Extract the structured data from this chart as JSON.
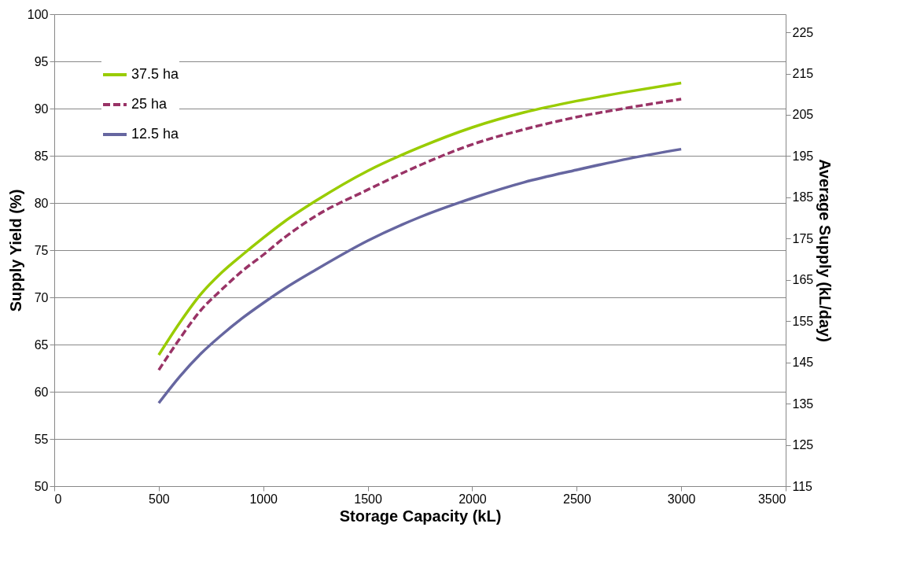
{
  "chart_data": {
    "type": "line",
    "xlabel": "Storage Capacity (kL)",
    "ylabel": "Supply Yield (%)",
    "y2label": "Average Supply (kL/day)",
    "xlim": [
      0,
      3500
    ],
    "xticks": [
      0,
      500,
      1000,
      1500,
      2000,
      2500,
      3000,
      3500
    ],
    "ylim": [
      50,
      100
    ],
    "yticks": [
      50,
      55,
      60,
      65,
      70,
      75,
      80,
      85,
      90,
      95,
      100
    ],
    "y2lim": [
      115,
      229.4
    ],
    "y2ticks": [
      115,
      125,
      135,
      145,
      155,
      165,
      175,
      185,
      195,
      205,
      215,
      225
    ],
    "grid": "y",
    "legend": "top left",
    "marker": "none",
    "x": [
      500,
      600,
      700,
      800,
      900,
      1000,
      1100,
      1250,
      1500,
      1750,
      2000,
      2250,
      2500,
      2750,
      3000
    ],
    "series": [
      {
        "name": "37.5 ha",
        "color": "#99cc00",
        "line_style": "solid",
        "values": [
          63.9,
          67.3,
          70.3,
          72.6,
          74.5,
          76.3,
          78.0,
          80.2,
          83.4,
          85.9,
          88.0,
          89.6,
          90.8,
          91.8,
          92.7
        ]
      },
      {
        "name": "25 ha",
        "color": "#993366",
        "line_style": "dashed",
        "values": [
          62.3,
          65.6,
          68.6,
          70.8,
          72.8,
          74.5,
          76.3,
          78.6,
          81.4,
          84.0,
          86.2,
          87.8,
          89.1,
          90.1,
          91.0
        ]
      },
      {
        "name": "12.5 ha",
        "color": "#6666a0",
        "line_style": "solid",
        "values": [
          58.8,
          61.6,
          64.0,
          66.0,
          67.8,
          69.4,
          70.9,
          72.9,
          76.0,
          78.5,
          80.5,
          82.2,
          83.5,
          84.7,
          85.7
        ]
      }
    ]
  }
}
